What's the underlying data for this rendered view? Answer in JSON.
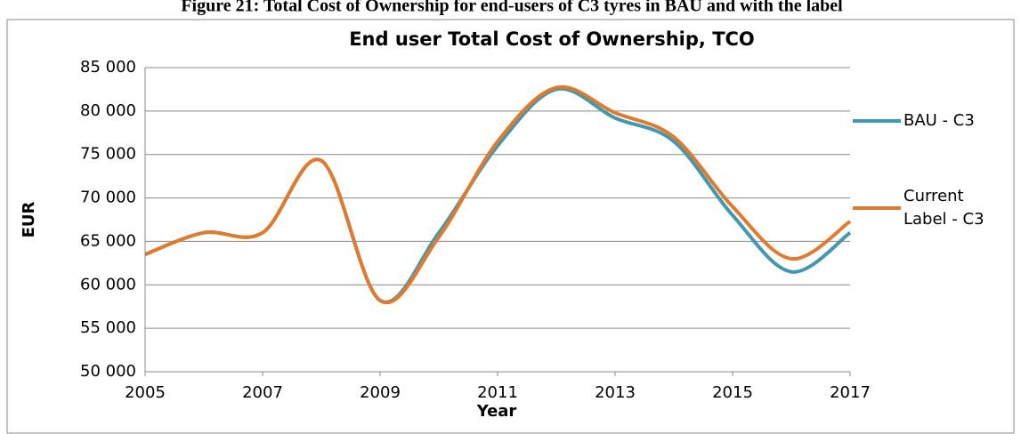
{
  "caption": "Figure 21: Total Cost of Ownership for end-users of C3 tyres in BAU and with the label",
  "chart_data": {
    "type": "line",
    "title": "End user Total Cost of Ownership, TCO",
    "x_label": "Year",
    "y_label": "EUR",
    "x": [
      2005,
      2006,
      2007,
      2008,
      2009,
      2010,
      2011,
      2012,
      2013,
      2014,
      2015,
      2016,
      2017
    ],
    "series": [
      {
        "name": "BAU - C3",
        "color": "#4198af",
        "values": [
          63500,
          66000,
          66000,
          74300,
          58200,
          66000,
          76000,
          82500,
          79200,
          76500,
          68000,
          61500,
          66000
        ]
      },
      {
        "name": "Current Label - C3",
        "color": "#e07b2e",
        "values": [
          63500,
          66000,
          66000,
          74300,
          58200,
          65500,
          76500,
          82700,
          79800,
          77000,
          69000,
          63000,
          67300
        ]
      }
    ],
    "xlim": [
      2005,
      2017
    ],
    "xticks": [
      2005,
      2007,
      2009,
      2011,
      2013,
      2015,
      2017
    ],
    "ylim": [
      50000,
      85000
    ],
    "yticks": [
      {
        "value": 50000,
        "label": "50 000"
      },
      {
        "value": 55000,
        "label": "55 000"
      },
      {
        "value": 60000,
        "label": "60 000"
      },
      {
        "value": 65000,
        "label": "65 000"
      },
      {
        "value": 70000,
        "label": "70 000"
      },
      {
        "value": 75000,
        "label": "75 000"
      },
      {
        "value": 80000,
        "label": "80 000"
      },
      {
        "value": 85000,
        "label": "85 000"
      }
    ],
    "grid": true,
    "legend": "right"
  }
}
